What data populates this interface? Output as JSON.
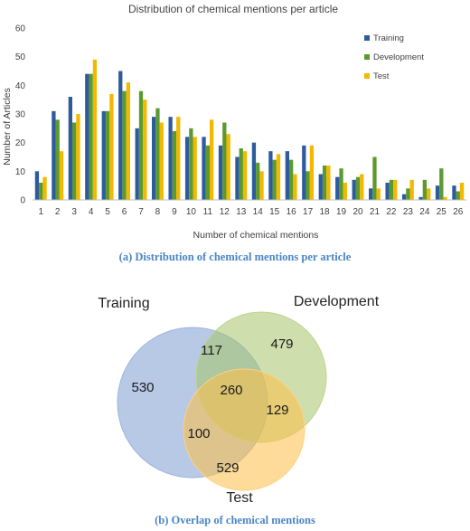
{
  "chart_data": [
    {
      "type": "bar",
      "title": "Distribution of chemical mentions per article",
      "xlabel": "Number of chemical mentions",
      "ylabel": "Number of Articles",
      "ylim": [
        0,
        60
      ],
      "yticks": [
        0,
        10,
        20,
        30,
        40,
        50,
        60
      ],
      "grid": false,
      "legend_position": "top-right",
      "categories": [
        "1",
        "2",
        "3",
        "4",
        "5",
        "6",
        "7",
        "8",
        "9",
        "10",
        "11",
        "12",
        "13",
        "14",
        "15",
        "16",
        "17",
        "18",
        "19",
        "20",
        "21",
        "22",
        "23",
        "24",
        "25",
        "26"
      ],
      "series": [
        {
          "name": "Training",
          "color": "#2e5b9e",
          "values": [
            10,
            31,
            36,
            44,
            31,
            45,
            25,
            29,
            29,
            22,
            22,
            19,
            15,
            20,
            17,
            17,
            19,
            9,
            8,
            7,
            4,
            6,
            2,
            1,
            5,
            5
          ]
        },
        {
          "name": "Development",
          "color": "#5b9a31",
          "values": [
            6,
            28,
            27,
            44,
            31,
            38,
            38,
            32,
            24,
            25,
            19,
            27,
            18,
            13,
            14,
            14,
            10,
            12,
            11,
            8,
            15,
            7,
            4,
            7,
            11,
            3
          ]
        },
        {
          "name": "Test",
          "color": "#f3b800",
          "values": [
            8,
            17,
            30,
            49,
            37,
            41,
            35,
            27,
            29,
            22,
            28,
            23,
            17,
            10,
            16,
            9,
            19,
            12,
            6,
            9,
            4,
            7,
            7,
            4,
            1,
            6
          ]
        }
      ]
    },
    {
      "type": "venn",
      "sets": [
        {
          "name": "Training",
          "color": "#7b9cd0",
          "only": 530
        },
        {
          "name": "Development",
          "color": "#a6c56a",
          "only": 479
        },
        {
          "name": "Test",
          "color": "#ffbd45",
          "only": 529
        }
      ],
      "overlaps": {
        "training_development": 117,
        "development_test": 129,
        "training_test": 100,
        "all": 260
      }
    }
  ],
  "captions": {
    "a": "(a) Distribution of chemical mentions per article",
    "b": "(b) Overlap of chemical mentions"
  }
}
